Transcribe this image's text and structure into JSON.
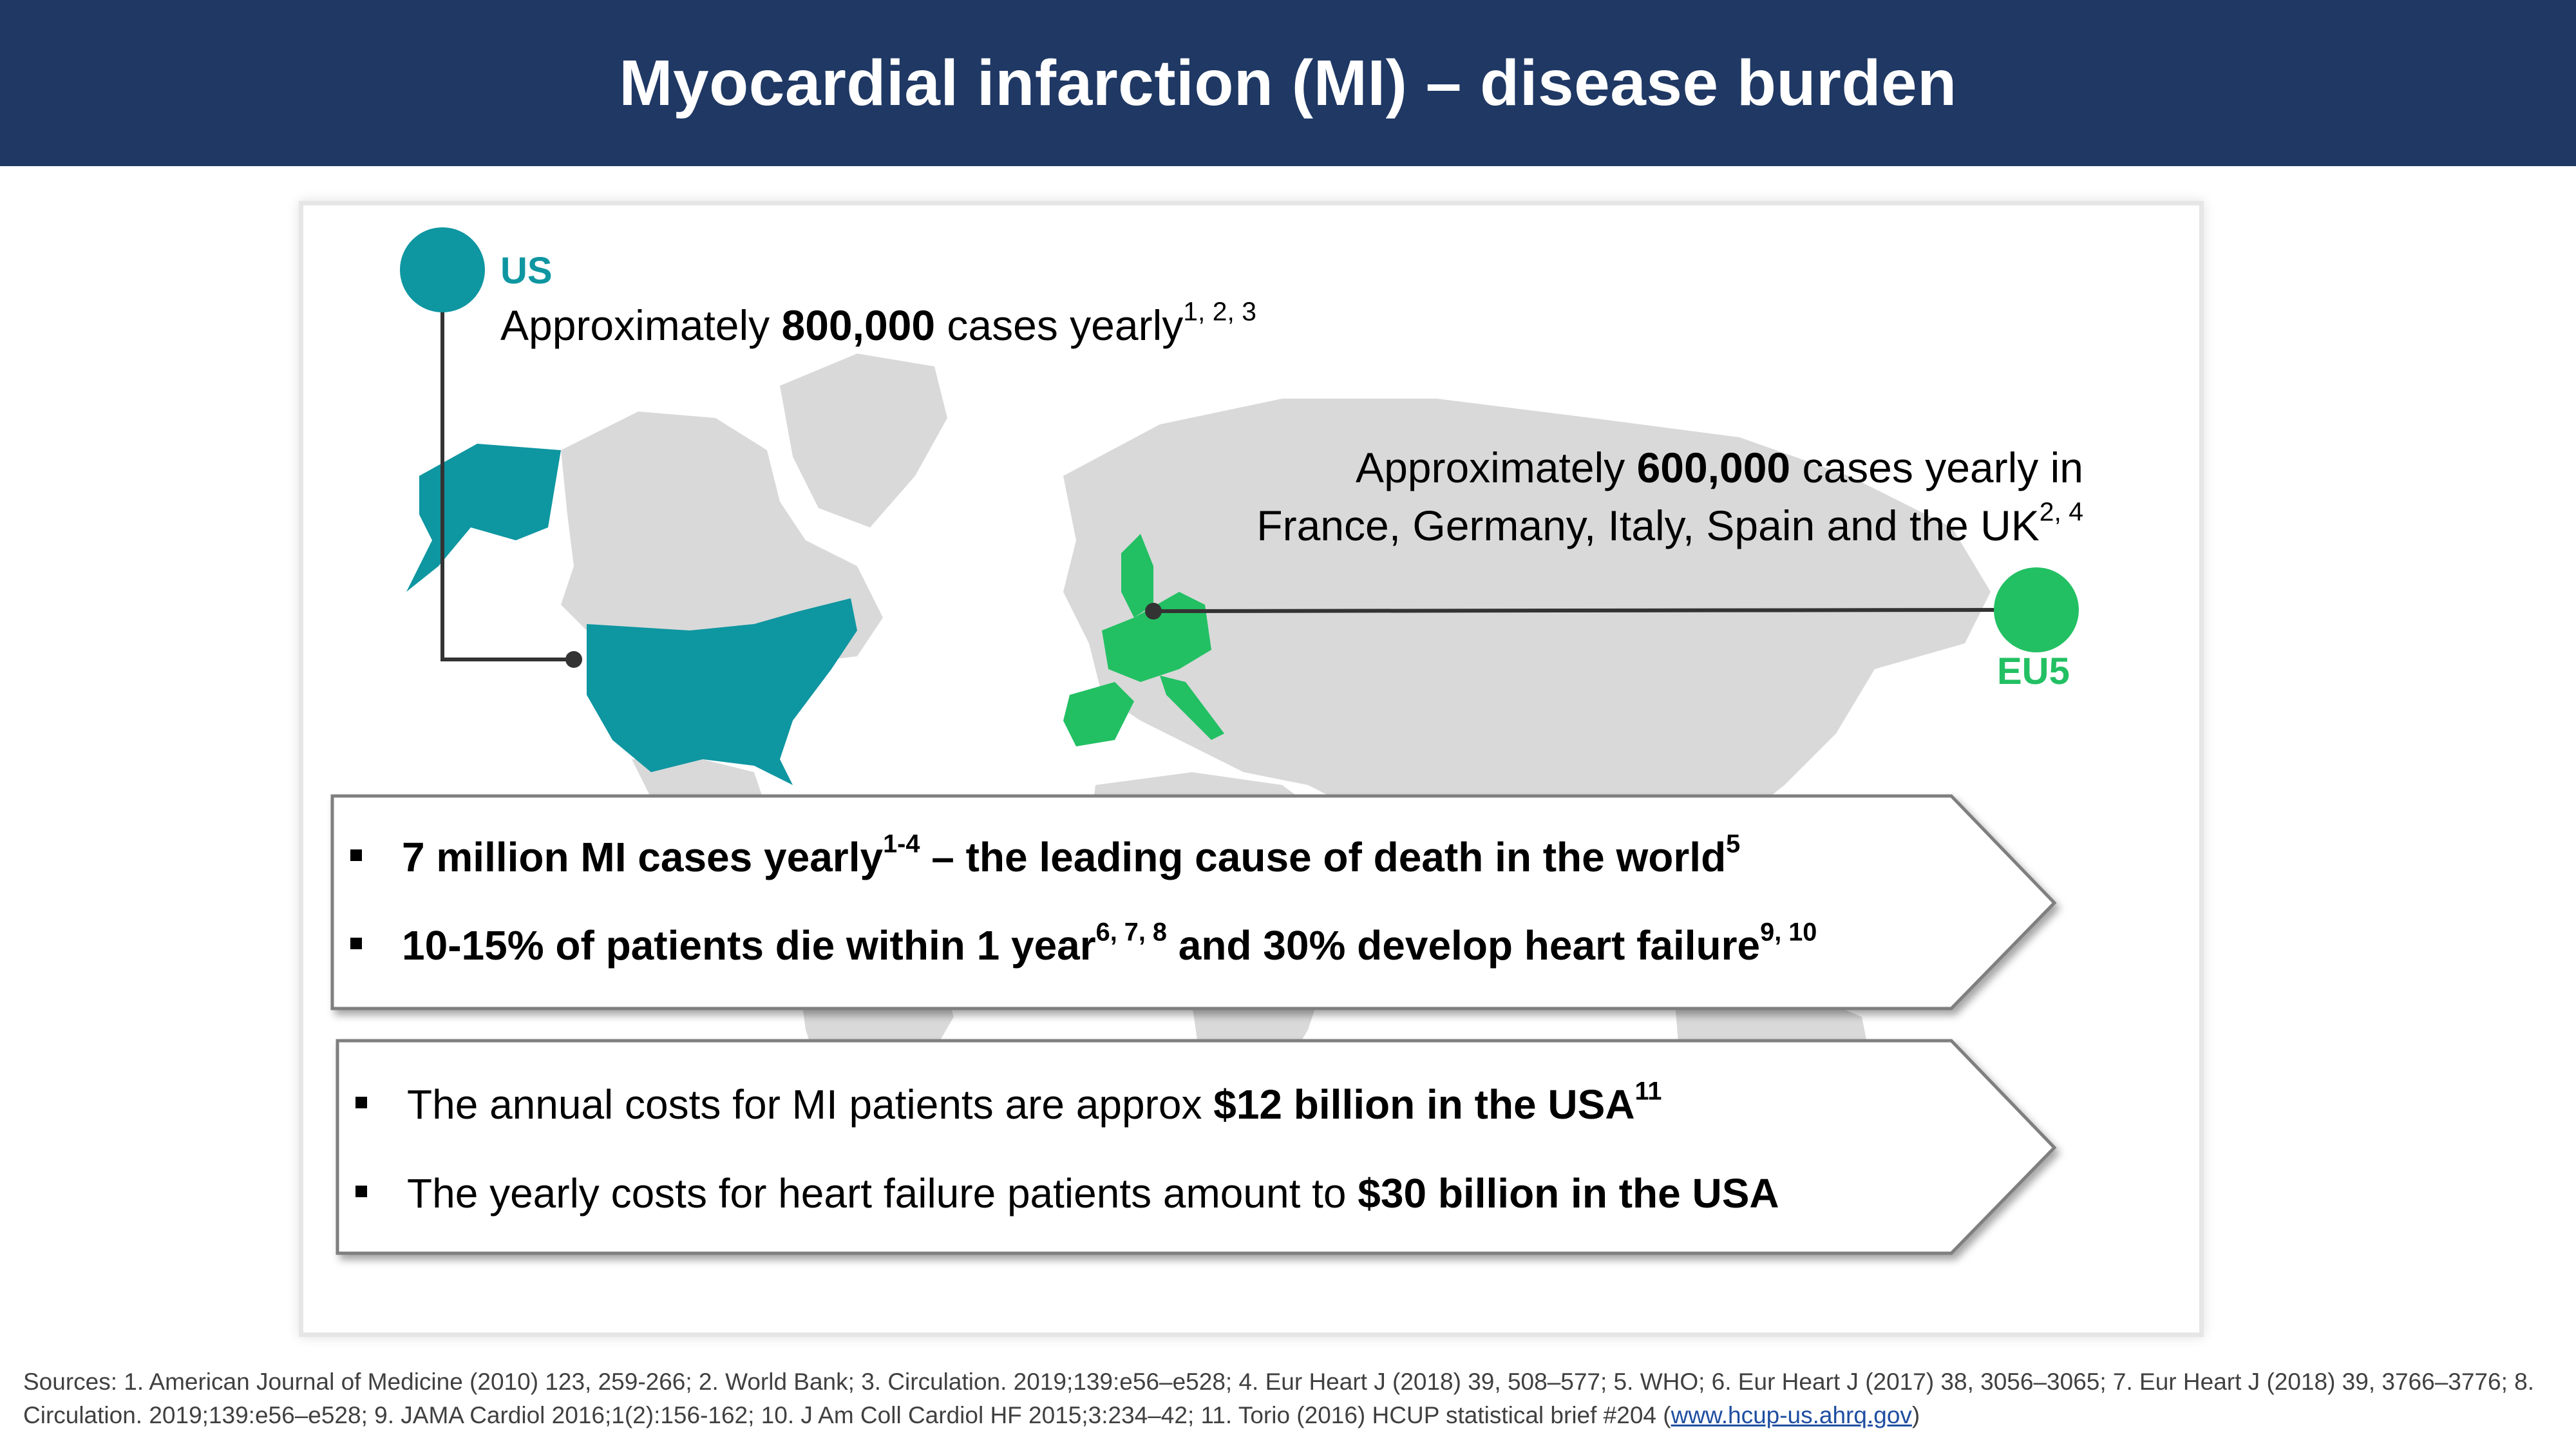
{
  "title": "Myocardial infarction (MI) – disease burden",
  "colors": {
    "header": "#1f3864",
    "us": "#0e96a1",
    "eu5": "#22c063",
    "map": "#d9d9d9"
  },
  "us": {
    "label": "US",
    "text_prefix": "Approximately ",
    "cases": "800,000",
    "text_suffix": " cases yearly",
    "refs": "1, 2, 3"
  },
  "eu5": {
    "label": "EU5",
    "line1_prefix": "Approximately ",
    "cases": "600,000",
    "line1_suffix": " cases yearly in",
    "line2": "France, Germany, Italy, Spain and the UK",
    "refs": "2, 4"
  },
  "burden_box": {
    "item1": {
      "text_a": "7 million MI cases yearly",
      "ref_a": "1-4",
      "text_b": " – the leading cause of death in the world",
      "ref_b": "5"
    },
    "item2": {
      "text_a": "10-15% of patients die within 1 year",
      "ref_a": "6, 7, 8",
      "text_b": " and 30% develop heart failure",
      "ref_b": "9, 10"
    }
  },
  "cost_box": {
    "item1": {
      "text_a": "The annual costs for MI patients are approx ",
      "bold": "$12 billion in the USA",
      "ref": "11"
    },
    "item2": {
      "text_a": "The yearly costs for heart failure patients amount to ",
      "bold": "$30 billion in the USA"
    }
  },
  "sources": {
    "text": "Sources: 1. American Journal of Medicine (2010) 123, 259-266; 2. World Bank; 3. Circulation. 2019;139:e56–e528; 4. Eur Heart J (2018) 39, 508–577; 5. WHO; 6. Eur Heart J (2017) 38, 3056–3065; 7. Eur Heart J (2018) 39, 3766–3776; 8. Circulation. 2019;139:e56–e528; 9. JAMA Cardiol 2016;1(2):156-162; 10. J Am Coll Cardiol HF 2015;3:234–42; 11. Torio (2016) HCUP statistical brief #204 (",
    "link": "www.hcup-us.ahrq.gov",
    "close": ")"
  }
}
